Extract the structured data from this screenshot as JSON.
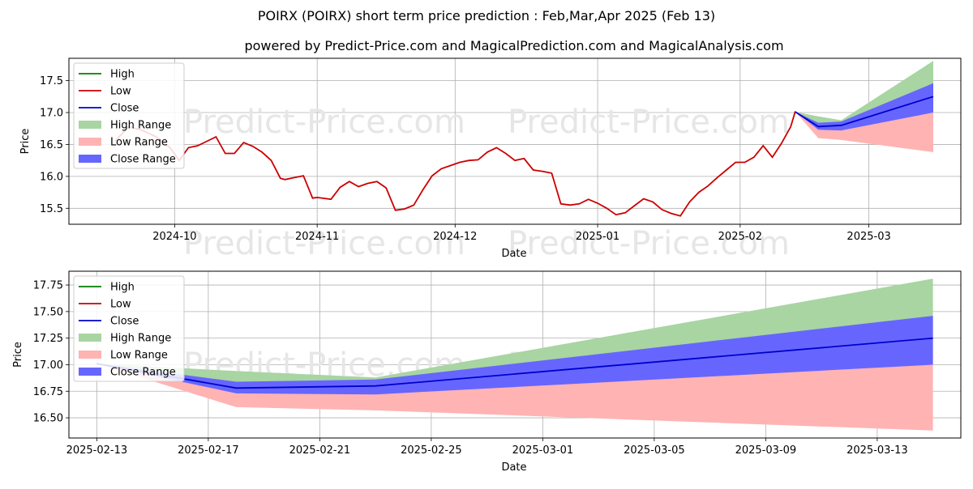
{
  "colors": {
    "high": "#008000",
    "low": "#cc0000",
    "close": "#0000cc",
    "high_range": "#a8d5a2",
    "low_range": "#ffb3b3",
    "close_range": "#6666ff",
    "grid": "#b0b0b0",
    "watermark": "#e6e6e6"
  },
  "watermark": "Predict-Price.com",
  "chart_data": [
    {
      "type": "line",
      "title": "POIRX (POIRX) short term price prediction : Feb,Mar,Apr 2025 (Feb 13)",
      "subtitle": "powered by Predict-Price.com and MagicalPrediction.com and MagicalAnalysis.com",
      "xlabel": "Date",
      "ylabel": "Price",
      "xlim": [
        "2024-09-08",
        "2025-03-21"
      ],
      "ylim": [
        15.25,
        17.85
      ],
      "grid": true,
      "legend_position": "top-left",
      "legend": [
        "High",
        "Low",
        "Close",
        "High Range",
        "Low Range",
        "Close Range"
      ],
      "x_ticks": [
        "2024-10-01",
        "2024-11-01",
        "2024-12-01",
        "2025-01-01",
        "2025-02-01",
        "2025-03-01"
      ],
      "x_tick_labels": [
        "2024-10",
        "2024-11",
        "2024-12",
        "2025-01",
        "2025-02",
        "2025-03"
      ],
      "y_ticks": [
        15.5,
        16.0,
        16.5,
        17.0,
        17.5
      ],
      "y_tick_labels": [
        "15.5",
        "16.0",
        "16.5",
        "17.0",
        "17.5"
      ],
      "history": {
        "x": [
          "2024-09-18",
          "2024-09-21",
          "2024-09-24",
          "2024-09-27",
          "2024-09-30",
          "2024-10-02",
          "2024-10-04",
          "2024-10-06",
          "2024-10-08",
          "2024-10-10",
          "2024-10-12",
          "2024-10-14",
          "2024-10-16",
          "2024-10-18",
          "2024-10-20",
          "2024-10-22",
          "2024-10-24",
          "2024-10-25",
          "2024-10-27",
          "2024-10-29",
          "2024-10-31",
          "2024-11-01",
          "2024-11-04",
          "2024-11-06",
          "2024-11-08",
          "2024-11-10",
          "2024-11-12",
          "2024-11-14",
          "2024-11-16",
          "2024-11-18",
          "2024-11-20",
          "2024-11-22",
          "2024-11-24",
          "2024-11-26",
          "2024-11-28",
          "2024-11-30",
          "2024-12-02",
          "2024-12-04",
          "2024-12-06",
          "2024-12-08",
          "2024-12-10",
          "2024-12-12",
          "2024-12-14",
          "2024-12-16",
          "2024-12-18",
          "2024-12-20",
          "2024-12-22",
          "2024-12-24",
          "2024-12-26",
          "2024-12-28",
          "2024-12-30",
          "2025-01-01",
          "2025-01-03",
          "2025-01-05",
          "2025-01-07",
          "2025-01-09",
          "2025-01-11",
          "2025-01-13",
          "2025-01-15",
          "2025-01-17",
          "2025-01-19",
          "2025-01-21",
          "2025-01-23",
          "2025-01-25",
          "2025-01-27",
          "2025-01-29",
          "2025-01-31",
          "2025-02-02",
          "2025-02-04",
          "2025-02-06",
          "2025-02-08",
          "2025-02-10",
          "2025-02-12",
          "2025-02-13"
        ],
        "y": [
          16.55,
          16.78,
          16.72,
          16.62,
          16.45,
          16.25,
          16.45,
          16.48,
          16.55,
          16.62,
          16.36,
          16.36,
          16.53,
          16.47,
          16.38,
          16.25,
          15.97,
          15.95,
          15.98,
          16.01,
          15.66,
          15.67,
          15.64,
          15.83,
          15.92,
          15.84,
          15.89,
          15.92,
          15.82,
          15.47,
          15.49,
          15.55,
          15.79,
          16.01,
          16.12,
          16.17,
          16.22,
          16.25,
          16.26,
          16.38,
          16.45,
          16.36,
          16.25,
          16.28,
          16.1,
          16.08,
          16.05,
          15.57,
          15.55,
          15.57,
          15.64,
          15.58,
          15.5,
          15.4,
          15.43,
          15.54,
          15.65,
          15.6,
          15.48,
          15.42,
          15.38,
          15.6,
          15.75,
          15.85,
          15.98,
          16.1,
          16.22,
          16.22,
          16.3,
          16.48,
          16.3,
          16.52,
          16.78,
          17.02
        ]
      },
      "forecast": {
        "x": [
          "2025-02-13",
          "2025-02-18",
          "2025-02-23",
          "2025-03-15"
        ],
        "close": [
          17.01,
          16.78,
          16.8,
          17.25
        ],
        "close_upper": [
          17.01,
          16.84,
          16.86,
          17.46
        ],
        "close_lower": [
          17.01,
          16.73,
          16.72,
          17.0
        ],
        "high_upper": [
          17.01,
          16.94,
          16.88,
          17.81
        ],
        "low_lower": [
          17.01,
          16.6,
          16.57,
          16.38
        ]
      }
    },
    {
      "type": "line",
      "xlabel": "Date",
      "ylabel": "Price",
      "xlim": [
        "2025-02-12",
        "2025-03-16"
      ],
      "ylim": [
        16.31,
        17.88
      ],
      "grid": true,
      "legend_position": "top-left",
      "legend": [
        "High",
        "Low",
        "Close",
        "High Range",
        "Low Range",
        "Close Range"
      ],
      "x_ticks": [
        "2025-02-13",
        "2025-02-17",
        "2025-02-21",
        "2025-02-25",
        "2025-03-01",
        "2025-03-05",
        "2025-03-09",
        "2025-03-13"
      ],
      "x_tick_labels": [
        "2025-02-13",
        "2025-02-17",
        "2025-02-21",
        "2025-02-25",
        "2025-03-01",
        "2025-03-05",
        "2025-03-09",
        "2025-03-13"
      ],
      "y_ticks": [
        16.5,
        16.75,
        17.0,
        17.25,
        17.5,
        17.75
      ],
      "y_tick_labels": [
        "16.50",
        "16.75",
        "17.00",
        "17.25",
        "17.50",
        "17.75"
      ],
      "forecast": {
        "x": [
          "2025-02-13",
          "2025-02-18",
          "2025-02-23",
          "2025-03-15"
        ],
        "close": [
          17.01,
          16.78,
          16.8,
          17.25
        ],
        "close_upper": [
          17.01,
          16.84,
          16.86,
          17.46
        ],
        "close_lower": [
          17.01,
          16.73,
          16.72,
          17.0
        ],
        "high_upper": [
          17.01,
          16.94,
          16.88,
          17.81
        ],
        "low_lower": [
          17.01,
          16.6,
          16.57,
          16.38
        ]
      }
    }
  ]
}
